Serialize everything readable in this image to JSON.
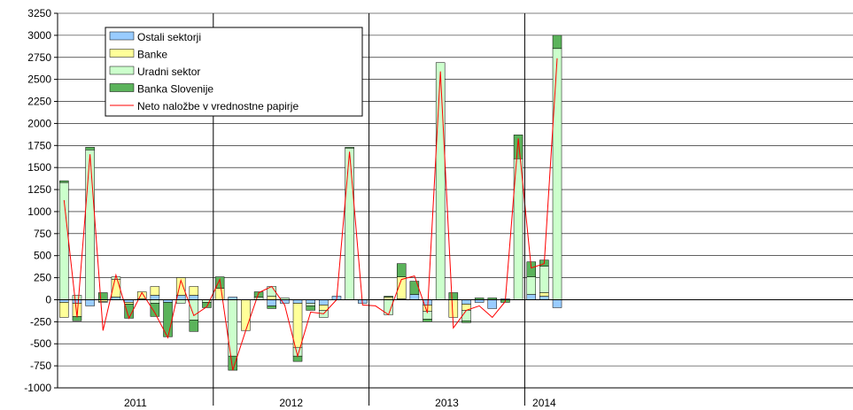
{
  "chart_data": {
    "type": "bar",
    "stacked": true,
    "ylim": [
      -1000,
      3250
    ],
    "yticks": [
      -1000,
      -750,
      -500,
      -250,
      0,
      250,
      500,
      750,
      1000,
      1250,
      1500,
      1750,
      2000,
      2250,
      2500,
      2750,
      3000,
      3250
    ],
    "ytick_labels": [
      "-1000",
      "-750",
      "-500",
      "-250",
      "0",
      "250",
      "500",
      "750",
      "1000",
      "1250",
      "1500",
      "1750",
      "2000",
      "2250",
      "2500",
      "2750",
      "3000",
      "3250"
    ],
    "grid": true,
    "legend_position": "top-left",
    "year_labels": [
      "2011",
      "2012",
      "2013",
      "2014"
    ],
    "year_months": [
      12,
      12,
      12,
      3
    ],
    "series": [
      {
        "name": "Ostali sektorji",
        "color": "#99CCFF",
        "values": [
          -30,
          -40,
          -70,
          0,
          30,
          -30,
          10,
          50,
          -30,
          50,
          50,
          0,
          0,
          30,
          0,
          0,
          -70,
          -40,
          -40,
          -40,
          -60,
          40,
          0,
          -40,
          0,
          0,
          10,
          60,
          -60,
          0,
          0,
          -50,
          -30,
          -100,
          10,
          0,
          60,
          40,
          -90
        ]
      },
      {
        "name": "Banke",
        "color": "#FFFF99",
        "values": [
          -170,
          -150,
          0,
          -20,
          200,
          -20,
          80,
          100,
          0,
          200,
          100,
          0,
          130,
          0,
          -350,
          0,
          40,
          0,
          -500,
          0,
          -60,
          0,
          0,
          0,
          0,
          30,
          250,
          0,
          -70,
          0,
          -200,
          -70,
          0,
          0,
          0,
          0,
          0,
          40,
          0
        ]
      },
      {
        "name": "Uradni sektor",
        "color": "#CCFFCC",
        "values": [
          1330,
          50,
          1700,
          -10,
          30,
          0,
          0,
          -40,
          0,
          -40,
          -230,
          -30,
          0,
          -640,
          0,
          30,
          110,
          20,
          -100,
          -30,
          -80,
          0,
          1720,
          0,
          0,
          -170,
          0,
          0,
          -90,
          2690,
          0,
          -120,
          0,
          0,
          0,
          1600,
          200,
          300,
          2850
        ]
      },
      {
        "name": "Banka Slovenije",
        "color": "#5BB35B",
        "values": [
          20,
          -50,
          30,
          80,
          0,
          -160,
          0,
          -150,
          -390,
          0,
          -130,
          -60,
          130,
          -160,
          0,
          60,
          -30,
          0,
          -60,
          -50,
          0,
          0,
          10,
          0,
          0,
          10,
          150,
          150,
          -30,
          0,
          80,
          -20,
          20,
          20,
          -30,
          270,
          170,
          70,
          150
        ]
      }
    ],
    "line": {
      "name": "Neto naložbe v vrednostne papirje",
      "color": "#FF0000",
      "values": [
        1130,
        -200,
        1650,
        -350,
        280,
        -210,
        80,
        -150,
        -430,
        220,
        -180,
        -80,
        230,
        -800,
        -350,
        80,
        150,
        -60,
        -640,
        -140,
        -160,
        0,
        1680,
        -60,
        -70,
        -170,
        230,
        270,
        -150,
        2590,
        -320,
        -120,
        -70,
        -200,
        -20,
        1830,
        360,
        410,
        2740
      ]
    }
  }
}
